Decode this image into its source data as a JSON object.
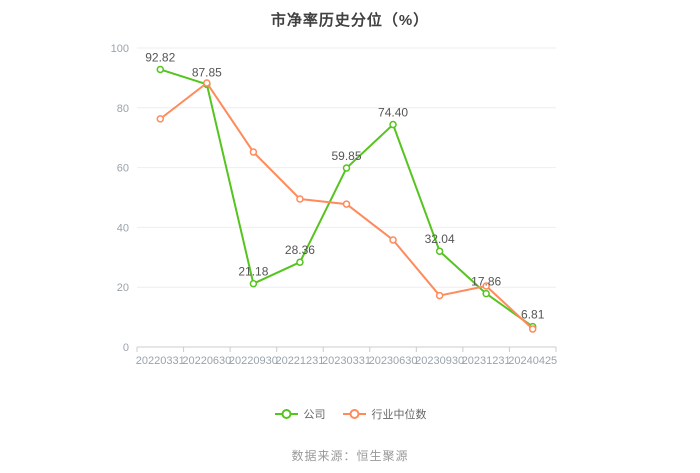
{
  "title": "市净率历史分位（%）",
  "source_text": "数据来源：恒生聚源",
  "legend": [
    {
      "name": "公司",
      "color": "#55c41e"
    },
    {
      "name": "行业中位数",
      "color": "#ff8a5b"
    }
  ],
  "chart_data": {
    "type": "line",
    "title": "市净率历史分位（%）",
    "categories": [
      "20220331",
      "20220630",
      "20220930",
      "20221231",
      "20230331",
      "20230630",
      "20230930",
      "20231231",
      "20240425"
    ],
    "series": [
      {
        "name": "公司",
        "color": "#55c41e",
        "values": [
          92.82,
          87.85,
          21.18,
          28.36,
          59.85,
          74.4,
          32.04,
          17.86,
          6.81
        ],
        "point_labels": [
          "92.82",
          "87.85",
          "21.18",
          "28.36",
          "59.85",
          "74.40",
          "32.04",
          "17.86",
          "6.81"
        ]
      },
      {
        "name": "行业中位数",
        "color": "#ff8a5b",
        "values": [
          76.3,
          88.3,
          65.2,
          49.5,
          47.8,
          35.8,
          17.2,
          20.4,
          6.0
        ],
        "point_labels": null
      }
    ],
    "ylim": [
      0,
      100
    ],
    "yticks": [
      0,
      20,
      40,
      60,
      80,
      100
    ],
    "grid": true,
    "legend_position": "bottom",
    "styles": {
      "grid_color": "#ededf3",
      "axis_line_color": "#cccccc",
      "axis_label_color": "#9aa3ab",
      "value_label_color": "#555555",
      "background": "#ffffff"
    }
  }
}
